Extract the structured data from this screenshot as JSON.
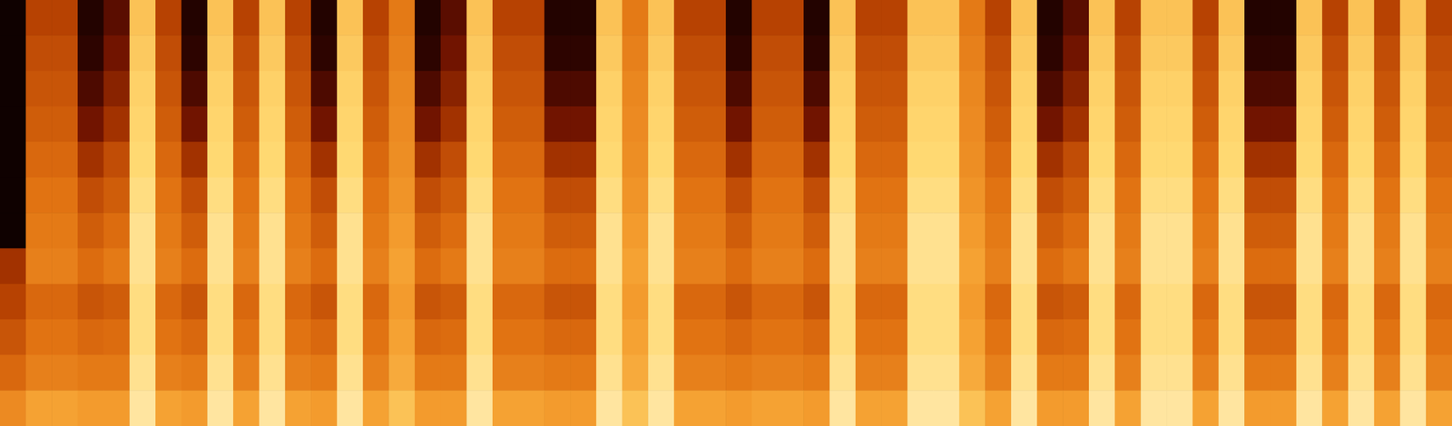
{
  "chart_data": {
    "type": "heatmap",
    "tick_labels": false,
    "zlim": [
      0,
      100
    ],
    "cells": [
      [
        5,
        45,
        45,
        12,
        25,
        80,
        45,
        12,
        80,
        45,
        80,
        45,
        12,
        80,
        45,
        60,
        12,
        25,
        80,
        45,
        45,
        12,
        12,
        80,
        60,
        80,
        45,
        45,
        12,
        45,
        45,
        12,
        80,
        45,
        45,
        80,
        80,
        60,
        45,
        80,
        12,
        25,
        80,
        45,
        80,
        80,
        45,
        80,
        12,
        12,
        80,
        45,
        80,
        45,
        80,
        45
      ],
      [
        5,
        48,
        48,
        15,
        30,
        82,
        48,
        15,
        82,
        48,
        82,
        48,
        15,
        82,
        48,
        62,
        15,
        30,
        82,
        48,
        48,
        15,
        15,
        82,
        62,
        82,
        48,
        48,
        15,
        48,
        48,
        15,
        82,
        48,
        48,
        82,
        82,
        62,
        48,
        82,
        15,
        30,
        82,
        48,
        82,
        82,
        48,
        82,
        15,
        15,
        82,
        48,
        82,
        48,
        82,
        48
      ],
      [
        5,
        50,
        50,
        22,
        35,
        84,
        50,
        22,
        84,
        50,
        84,
        50,
        22,
        84,
        50,
        64,
        22,
        35,
        84,
        50,
        50,
        22,
        22,
        84,
        64,
        84,
        50,
        50,
        22,
        50,
        50,
        22,
        84,
        50,
        50,
        84,
        84,
        64,
        50,
        84,
        22,
        35,
        84,
        50,
        84,
        84,
        50,
        84,
        22,
        22,
        84,
        50,
        84,
        50,
        84,
        50
      ],
      [
        5,
        52,
        52,
        30,
        40,
        85,
        52,
        30,
        85,
        52,
        85,
        52,
        30,
        85,
        52,
        65,
        30,
        40,
        85,
        52,
        52,
        30,
        30,
        85,
        65,
        85,
        52,
        52,
        30,
        52,
        52,
        30,
        85,
        52,
        52,
        85,
        85,
        65,
        52,
        85,
        30,
        40,
        85,
        52,
        85,
        85,
        52,
        85,
        30,
        30,
        85,
        52,
        85,
        52,
        85,
        52
      ],
      [
        5,
        55,
        55,
        40,
        48,
        86,
        55,
        40,
        86,
        55,
        86,
        55,
        40,
        86,
        55,
        66,
        40,
        48,
        86,
        55,
        55,
        40,
        40,
        86,
        66,
        86,
        55,
        55,
        40,
        55,
        55,
        40,
        86,
        55,
        55,
        86,
        86,
        66,
        55,
        86,
        40,
        48,
        86,
        55,
        86,
        86,
        55,
        86,
        40,
        40,
        86,
        55,
        86,
        55,
        86,
        55
      ],
      [
        5,
        58,
        58,
        48,
        52,
        88,
        58,
        48,
        88,
        58,
        88,
        58,
        48,
        88,
        58,
        68,
        48,
        52,
        88,
        58,
        58,
        48,
        48,
        88,
        68,
        88,
        58,
        58,
        48,
        58,
        58,
        48,
        88,
        58,
        58,
        88,
        88,
        68,
        58,
        88,
        48,
        52,
        88,
        58,
        88,
        88,
        58,
        88,
        48,
        48,
        88,
        58,
        88,
        58,
        88,
        58
      ],
      [
        5,
        60,
        60,
        52,
        56,
        90,
        60,
        52,
        90,
        60,
        90,
        60,
        52,
        90,
        60,
        70,
        52,
        56,
        90,
        60,
        60,
        52,
        52,
        90,
        70,
        90,
        60,
        60,
        52,
        60,
        60,
        52,
        90,
        60,
        60,
        90,
        90,
        70,
        60,
        90,
        52,
        56,
        90,
        60,
        90,
        90,
        60,
        90,
        52,
        52,
        90,
        60,
        90,
        60,
        90,
        60
      ],
      [
        40,
        62,
        62,
        56,
        60,
        90,
        62,
        56,
        90,
        62,
        90,
        62,
        56,
        90,
        62,
        72,
        56,
        60,
        90,
        62,
        62,
        56,
        56,
        90,
        72,
        90,
        62,
        62,
        56,
        62,
        62,
        56,
        90,
        62,
        62,
        90,
        90,
        72,
        62,
        90,
        56,
        60,
        90,
        62,
        90,
        90,
        62,
        90,
        56,
        56,
        90,
        62,
        90,
        62,
        90,
        62
      ],
      [
        45,
        55,
        55,
        50,
        52,
        88,
        55,
        50,
        88,
        55,
        88,
        55,
        50,
        88,
        55,
        70,
        50,
        52,
        88,
        55,
        55,
        50,
        50,
        88,
        70,
        88,
        55,
        55,
        50,
        55,
        55,
        50,
        88,
        55,
        55,
        88,
        88,
        70,
        55,
        88,
        50,
        52,
        88,
        55,
        88,
        88,
        55,
        88,
        50,
        50,
        88,
        55,
        88,
        55,
        88,
        55
      ],
      [
        50,
        58,
        58,
        55,
        56,
        88,
        58,
        55,
        88,
        58,
        88,
        58,
        55,
        88,
        58,
        72,
        55,
        56,
        88,
        58,
        58,
        55,
        55,
        88,
        72,
        88,
        58,
        58,
        55,
        58,
        58,
        55,
        88,
        58,
        58,
        88,
        88,
        72,
        58,
        88,
        55,
        56,
        88,
        58,
        88,
        88,
        58,
        88,
        55,
        55,
        88,
        58,
        88,
        58,
        88,
        58
      ],
      [
        55,
        62,
        62,
        60,
        60,
        90,
        62,
        60,
        90,
        62,
        90,
        62,
        60,
        90,
        62,
        74,
        60,
        60,
        90,
        62,
        62,
        60,
        60,
        90,
        74,
        90,
        62,
        62,
        60,
        62,
        62,
        60,
        90,
        62,
        62,
        90,
        90,
        74,
        62,
        90,
        60,
        60,
        90,
        62,
        90,
        90,
        62,
        90,
        60,
        60,
        90,
        62,
        90,
        62,
        90,
        62
      ],
      [
        65,
        72,
        72,
        70,
        70,
        92,
        72,
        70,
        92,
        72,
        92,
        72,
        70,
        92,
        72,
        80,
        70,
        70,
        92,
        72,
        72,
        70,
        70,
        92,
        80,
        92,
        72,
        72,
        70,
        72,
        72,
        70,
        92,
        72,
        72,
        92,
        92,
        80,
        72,
        92,
        70,
        70,
        92,
        72,
        92,
        92,
        72,
        92,
        70,
        70,
        92,
        72,
        92,
        72,
        92,
        72
      ]
    ]
  }
}
